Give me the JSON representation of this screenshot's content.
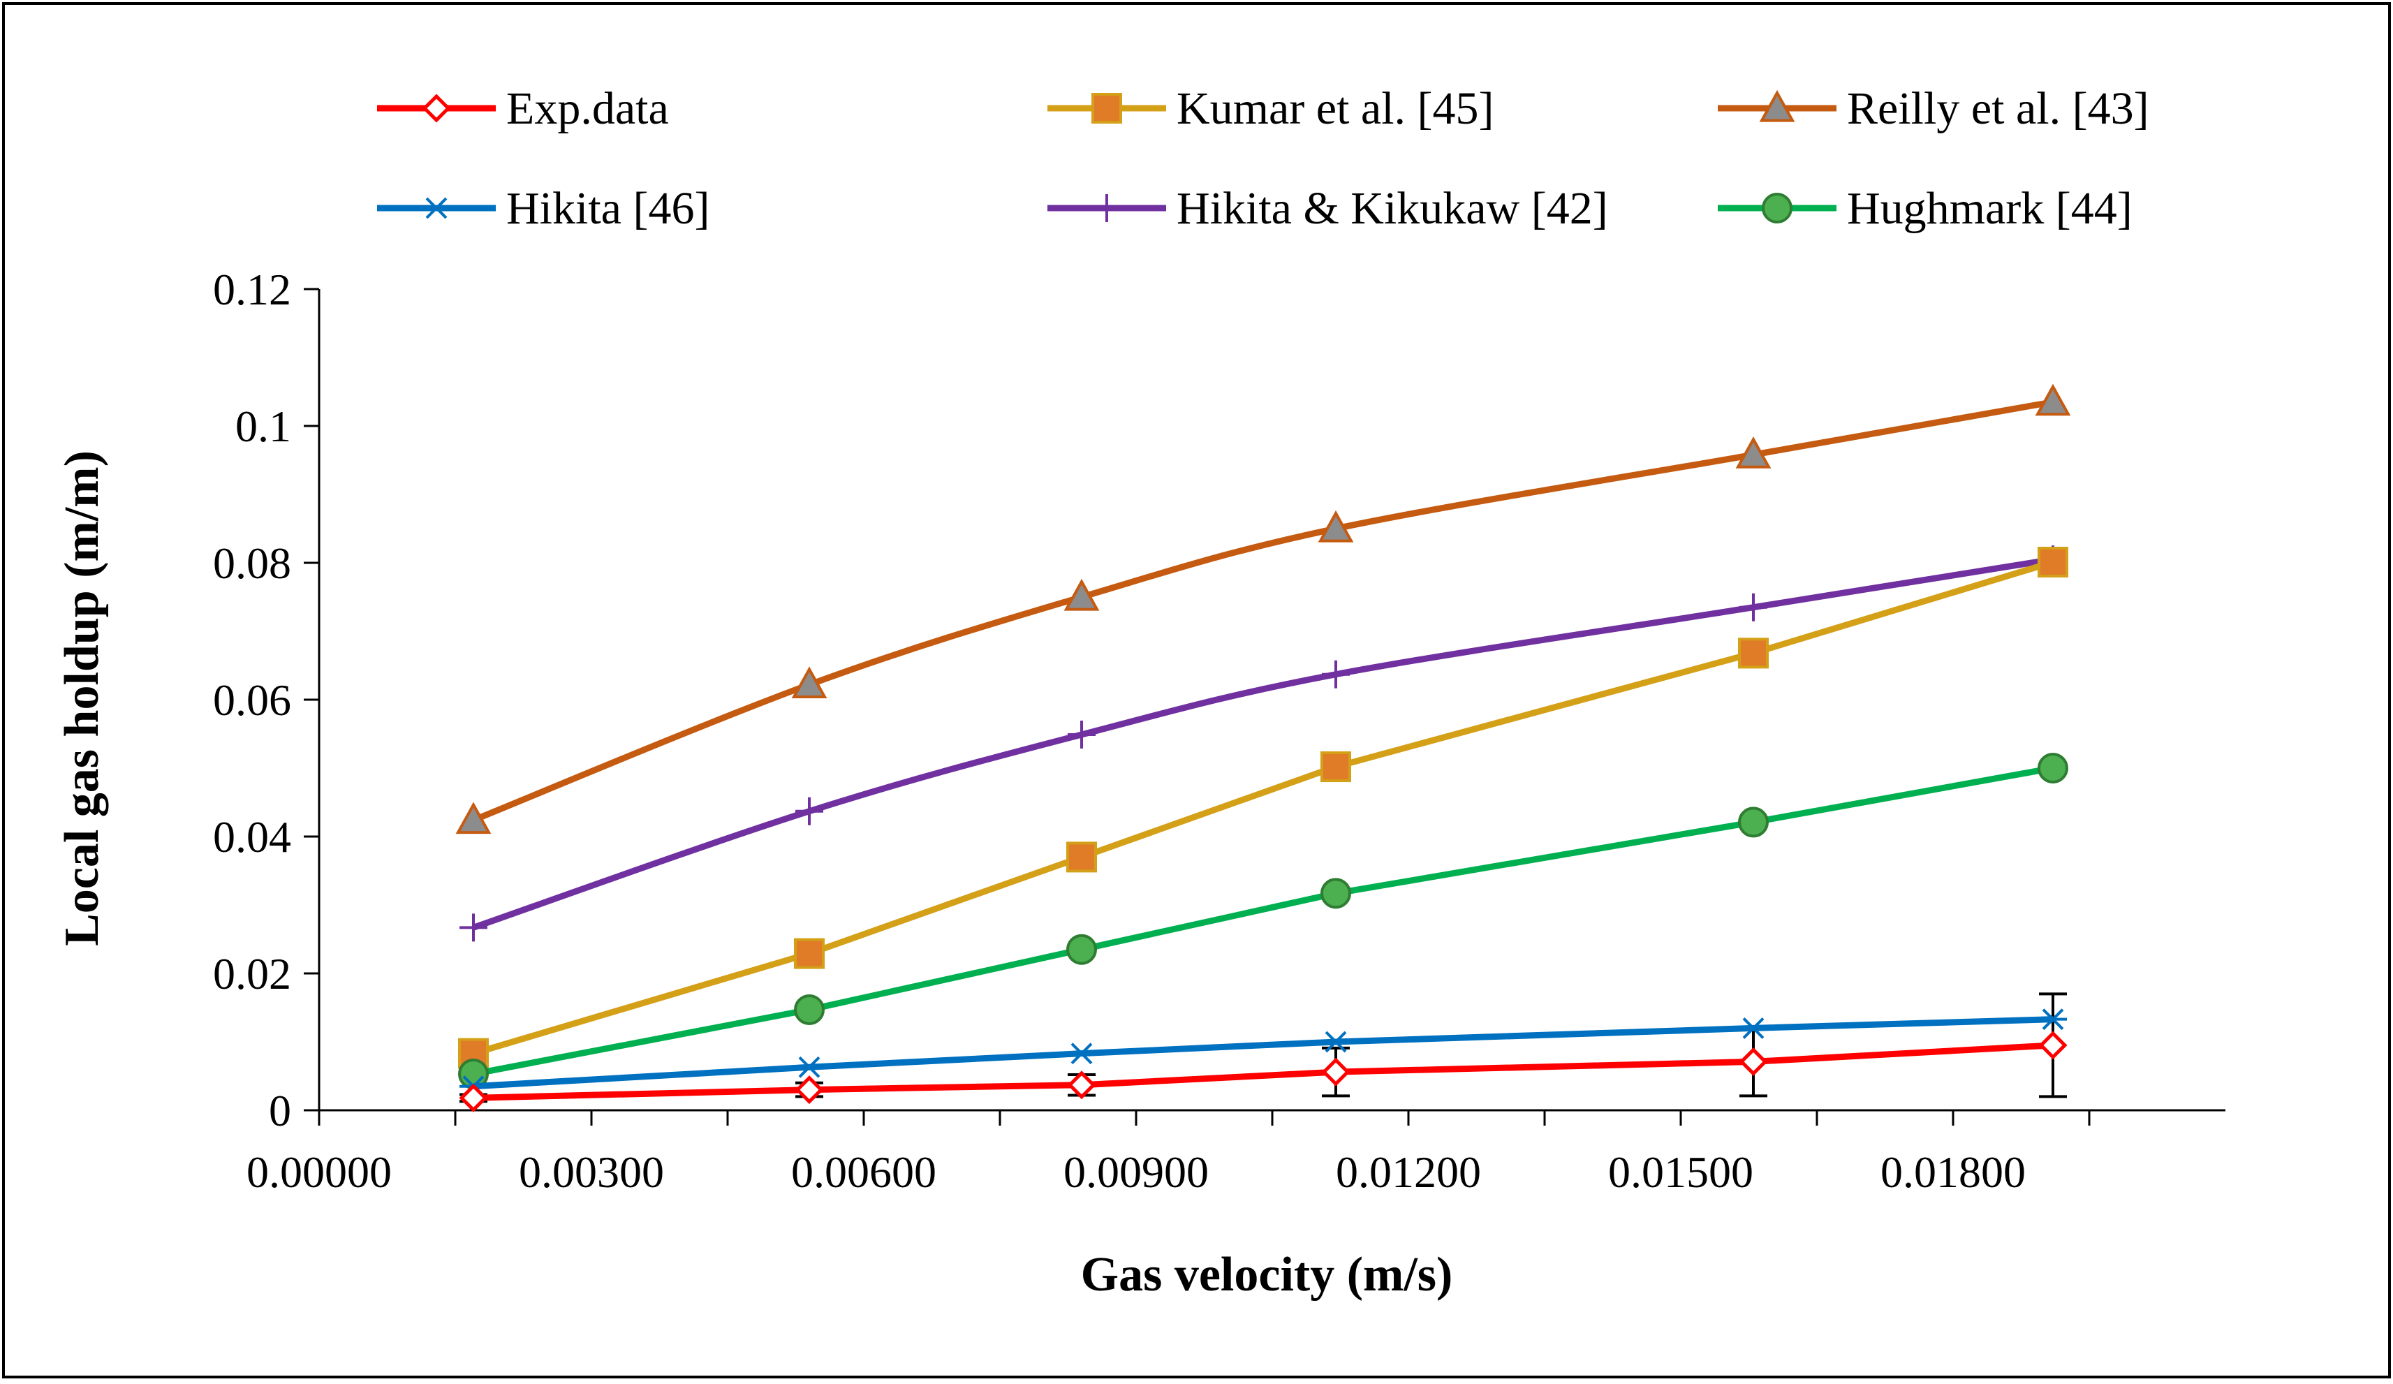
{
  "chart_data": {
    "type": "line",
    "title": "",
    "xlabel": "Gas velocity (m/s)",
    "ylabel": "Local gas holdup (m/m)",
    "xlim": [
      0,
      0.021
    ],
    "ylim": [
      0,
      0.12
    ],
    "x_ticks": [
      0,
      0.003,
      0.006,
      0.009,
      0.012,
      0.015,
      0.018
    ],
    "x_tick_labels": [
      "0.00000",
      "0.00300",
      "0.00600",
      "0.00900",
      "0.01200",
      "0.01500",
      "0.01800"
    ],
    "y_ticks": [
      0,
      0.02,
      0.04,
      0.06,
      0.08,
      0.1,
      0.12
    ],
    "y_tick_labels": [
      "0",
      "0.02",
      "0.04",
      "0.06",
      "0.08",
      "0.1",
      "0.12"
    ],
    "grid": false,
    "legend_position": "top",
    "x": [
      0.0017,
      0.0054,
      0.0084,
      0.0112,
      0.0158,
      0.0191
    ],
    "series": [
      {
        "name": "Exp.data",
        "color": "#ff0000",
        "marker": "diamond-open",
        "smooth": false,
        "values": [
          0.0018,
          0.003,
          0.0037,
          0.0056,
          0.0071,
          0.0095
        ],
        "error": [
          0.0005,
          0.001,
          0.0015,
          0.0035,
          0.005,
          0.0075
        ]
      },
      {
        "name": "Kumar et al. [45]",
        "color": "#d4a017",
        "marker": "square",
        "marker_fill": "#e07b28",
        "smooth": false,
        "values": [
          0.0083,
          0.0229,
          0.037,
          0.0502,
          0.0668,
          0.0801
        ]
      },
      {
        "name": "Reilly et al. [43]",
        "color": "#c55a11",
        "marker": "triangle",
        "marker_fill": "#8c8c8c",
        "smooth": true,
        "values": [
          0.0424,
          0.0622,
          0.075,
          0.085,
          0.0958,
          0.1035
        ]
      },
      {
        "name": "Hikita [46]",
        "color": "#0070c0",
        "marker": "asterisk",
        "smooth": false,
        "values": [
          0.0035,
          0.0063,
          0.0083,
          0.01,
          0.012,
          0.0133
        ]
      },
      {
        "name": "Hikita & Kikukaw [42]",
        "color": "#7030a0",
        "marker": "plus",
        "smooth": true,
        "values": [
          0.0267,
          0.0437,
          0.0549,
          0.0637,
          0.0735,
          0.0805
        ]
      },
      {
        "name": "Hughmark [44]",
        "color": "#00b050",
        "marker": "circle",
        "marker_fill": "#4caf50",
        "smooth": false,
        "values": [
          0.0053,
          0.0147,
          0.0235,
          0.0317,
          0.0421,
          0.05
        ]
      }
    ]
  }
}
